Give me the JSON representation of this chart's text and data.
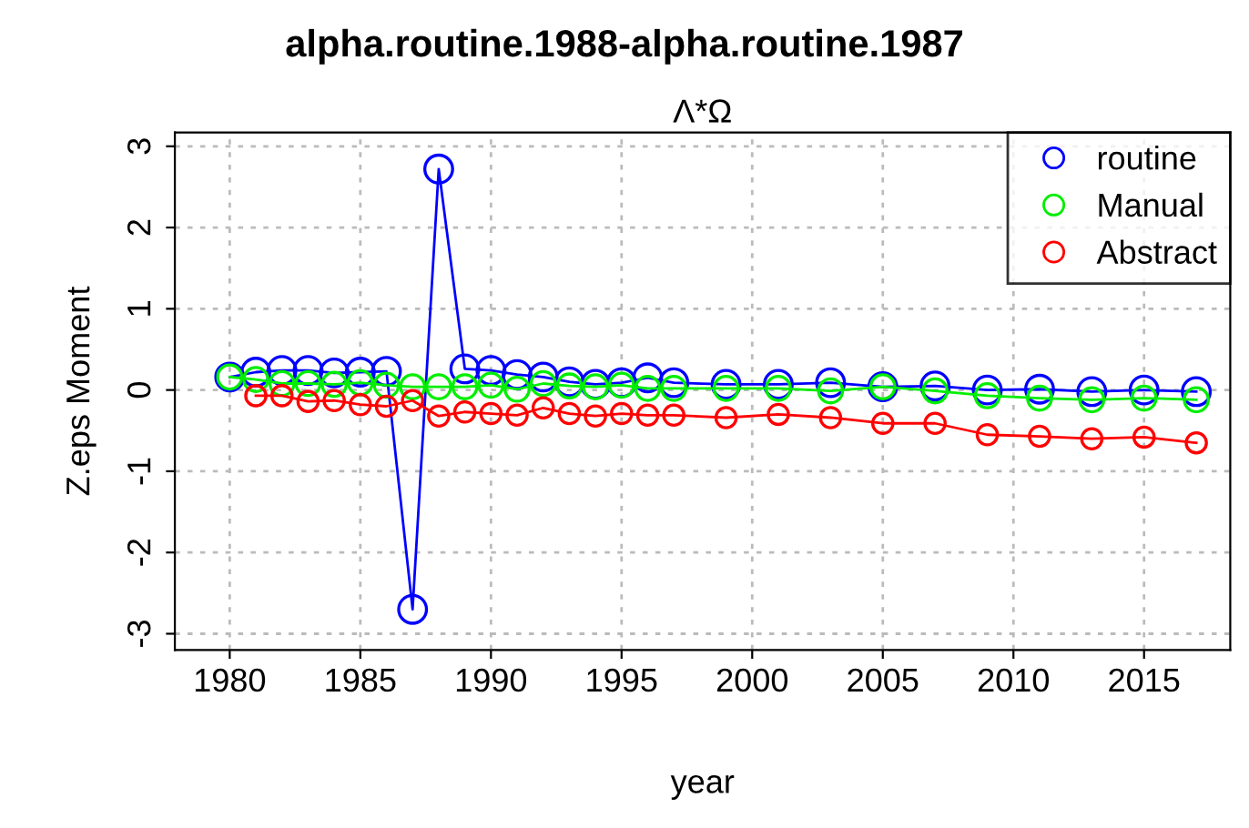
{
  "chart_data": {
    "type": "line",
    "title": "alpha.routine.1988-alpha.routine.1987",
    "subtitle": "Λ*Ω",
    "xlabel": "year",
    "ylabel": "Z.eps Moment",
    "x": [
      1980,
      1981,
      1982,
      1983,
      1984,
      1985,
      1986,
      1987,
      1988,
      1989,
      1990,
      1991,
      1992,
      1993,
      1994,
      1995,
      1996,
      1997,
      1999,
      2001,
      2003,
      2005,
      2007,
      2009,
      2011,
      2013,
      2015,
      2017
    ],
    "series": [
      {
        "name": "routine",
        "color": "#0000ff",
        "values": [
          0.16,
          0.22,
          0.24,
          0.24,
          0.21,
          0.22,
          0.23,
          -2.7,
          2.72,
          0.26,
          0.24,
          0.19,
          0.16,
          0.1,
          0.07,
          0.09,
          0.15,
          0.09,
          0.07,
          0.07,
          0.09,
          0.04,
          0.05,
          0.0,
          0.01,
          -0.02,
          0.0,
          -0.02
        ]
      },
      {
        "name": "Manual",
        "color": "#00ee00",
        "values": [
          0.16,
          0.13,
          0.08,
          0.08,
          0.07,
          0.09,
          0.06,
          0.04,
          0.04,
          0.04,
          0.06,
          0.01,
          0.08,
          0.05,
          0.04,
          0.06,
          0.02,
          0.02,
          0.02,
          0.02,
          -0.01,
          0.04,
          -0.01,
          -0.07,
          -0.1,
          -0.12,
          -0.1,
          -0.12
        ]
      },
      {
        "name": "Abstract",
        "color": "#ff0000",
        "values": [
          null,
          -0.07,
          -0.07,
          -0.14,
          -0.13,
          -0.18,
          -0.2,
          -0.13,
          -0.32,
          -0.27,
          -0.29,
          -0.31,
          -0.22,
          -0.29,
          -0.32,
          -0.29,
          -0.31,
          -0.31,
          -0.34,
          -0.3,
          -0.34,
          -0.41,
          -0.41,
          -0.55,
          -0.57,
          -0.6,
          -0.58,
          -0.65
        ]
      }
    ],
    "xlim": [
      1977.9,
      2018.3
    ],
    "ylim": [
      -3.2,
      3.17
    ],
    "xticks": [
      1980,
      1985,
      1990,
      1995,
      2000,
      2005,
      2010,
      2015
    ],
    "yticks": [
      -3,
      -2,
      -1,
      0,
      1,
      2,
      3
    ],
    "grid": true,
    "legend": "top right",
    "marker": "circle",
    "line_style": "solid"
  }
}
